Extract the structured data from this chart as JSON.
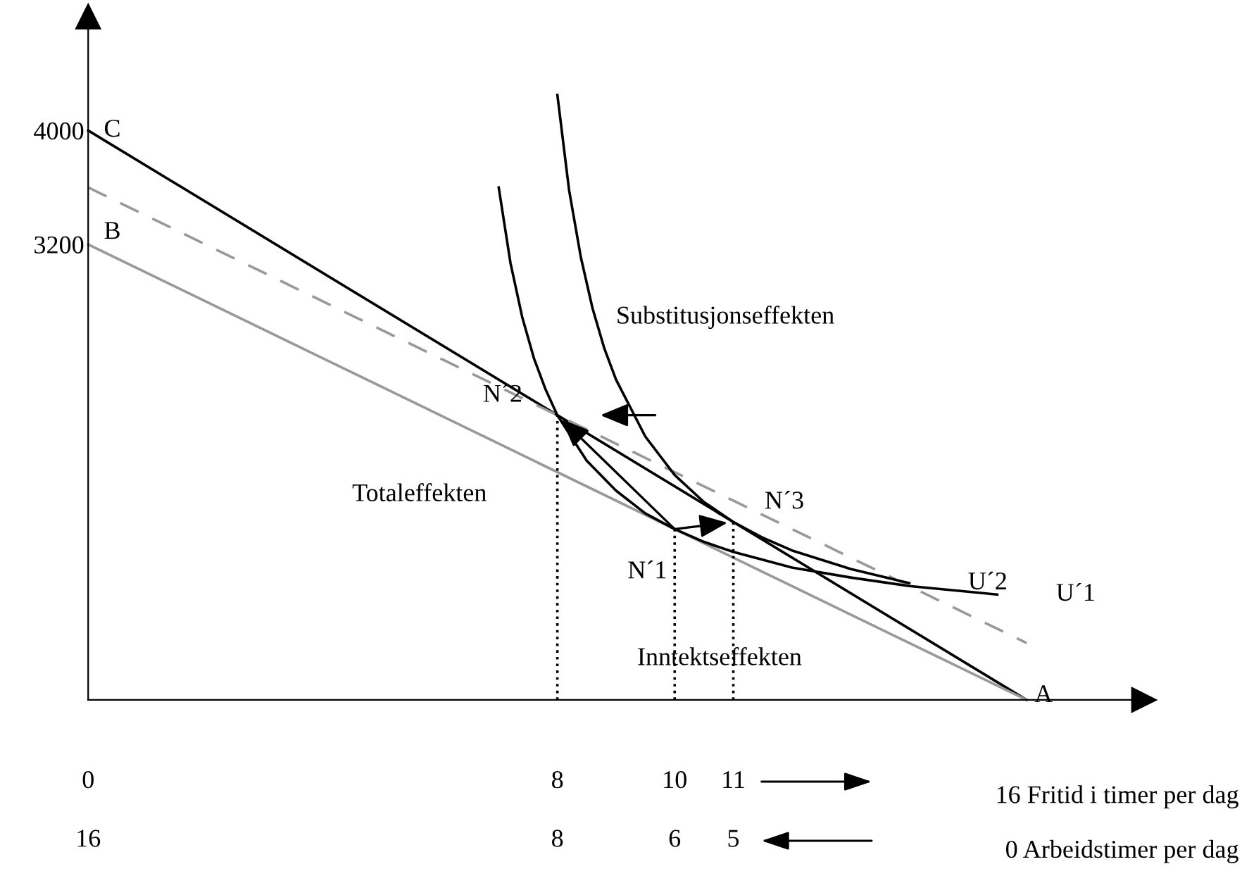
{
  "chart_data": {
    "type": "line",
    "series": [
      {
        "color": "#000000",
        "x": [
          0,
          16
        ],
        "values": [
          4000,
          0
        ]
      },
      {
        "color": "#999999",
        "x": [
          0,
          16
        ],
        "values": [
          3200,
          0
        ]
      },
      {
        "color": "#999999",
        "line_style": "dashed",
        "x": [
          0,
          16
        ],
        "values": [
          3600,
          400
        ]
      },
      {
        "color": "#000000",
        "x": [
          7,
          7.2,
          7.4,
          7.6,
          7.8,
          8,
          8.5,
          9,
          9.5,
          10,
          10.5,
          11,
          12,
          13,
          14,
          15,
          15.5
        ],
        "values": [
          3600,
          3070,
          2690,
          2400,
          2180,
          2000,
          1680,
          1470,
          1310,
          1200,
          1110,
          1040,
          930,
          860,
          800,
          760,
          740
        ]
      },
      {
        "color": "#000000",
        "x": [
          8,
          8.2,
          8.4,
          8.6,
          8.8,
          9,
          9.5,
          10,
          10.5,
          11,
          11.5,
          12,
          13,
          14
        ],
        "values": [
          4250,
          3580,
          3110,
          2750,
          2470,
          2250,
          1850,
          1580,
          1390,
          1250,
          1140,
          1050,
          920,
          820
        ]
      },
      {
        "color": "#000000",
        "line_style": "dotted",
        "x": [
          8,
          8
        ],
        "values": [
          0,
          2000
        ]
      },
      {
        "color": "#000000",
        "line_style": "dotted",
        "x": [
          10,
          10
        ],
        "values": [
          0,
          1200
        ]
      },
      {
        "color": "#000000",
        "line_style": "dotted",
        "x": [
          11,
          11
        ],
        "values": [
          0,
          1250
        ]
      }
    ],
    "xlim": [
      0,
      18
    ],
    "xticks": [
      0,
      8,
      10,
      11
    ],
    "x2lim": [
      16,
      -2
    ],
    "x2ticks": [
      16,
      8,
      6,
      5
    ],
    "ylim": [
      0,
      4800
    ],
    "yticks": [
      3200,
      4000
    ],
    "grid": false,
    "legend": false,
    "marker": "none",
    "annotations": [
      {
        "text": "C",
        "x": 0,
        "y": 4000
      },
      {
        "text": "B",
        "x": 0,
        "y": 3200
      },
      {
        "text": "A",
        "x": 16,
        "y": 0
      },
      {
        "text": "N´2",
        "x": 8,
        "y": 2000
      },
      {
        "text": "N´3",
        "x": 11,
        "y": 1250
      },
      {
        "text": "N´1",
        "x": 10,
        "y": 1200
      },
      {
        "text": "U´2",
        "x": 14,
        "y": 820
      },
      {
        "text": "U´1",
        "x": 15.5,
        "y": 740
      },
      "Substitusjonseffekten",
      "Totaleffekten",
      "Inntektseffekten"
    ],
    "xlabel": "16 Fritid i timer per dag",
    "x2label": "0 Arbeidstimer per dag"
  }
}
